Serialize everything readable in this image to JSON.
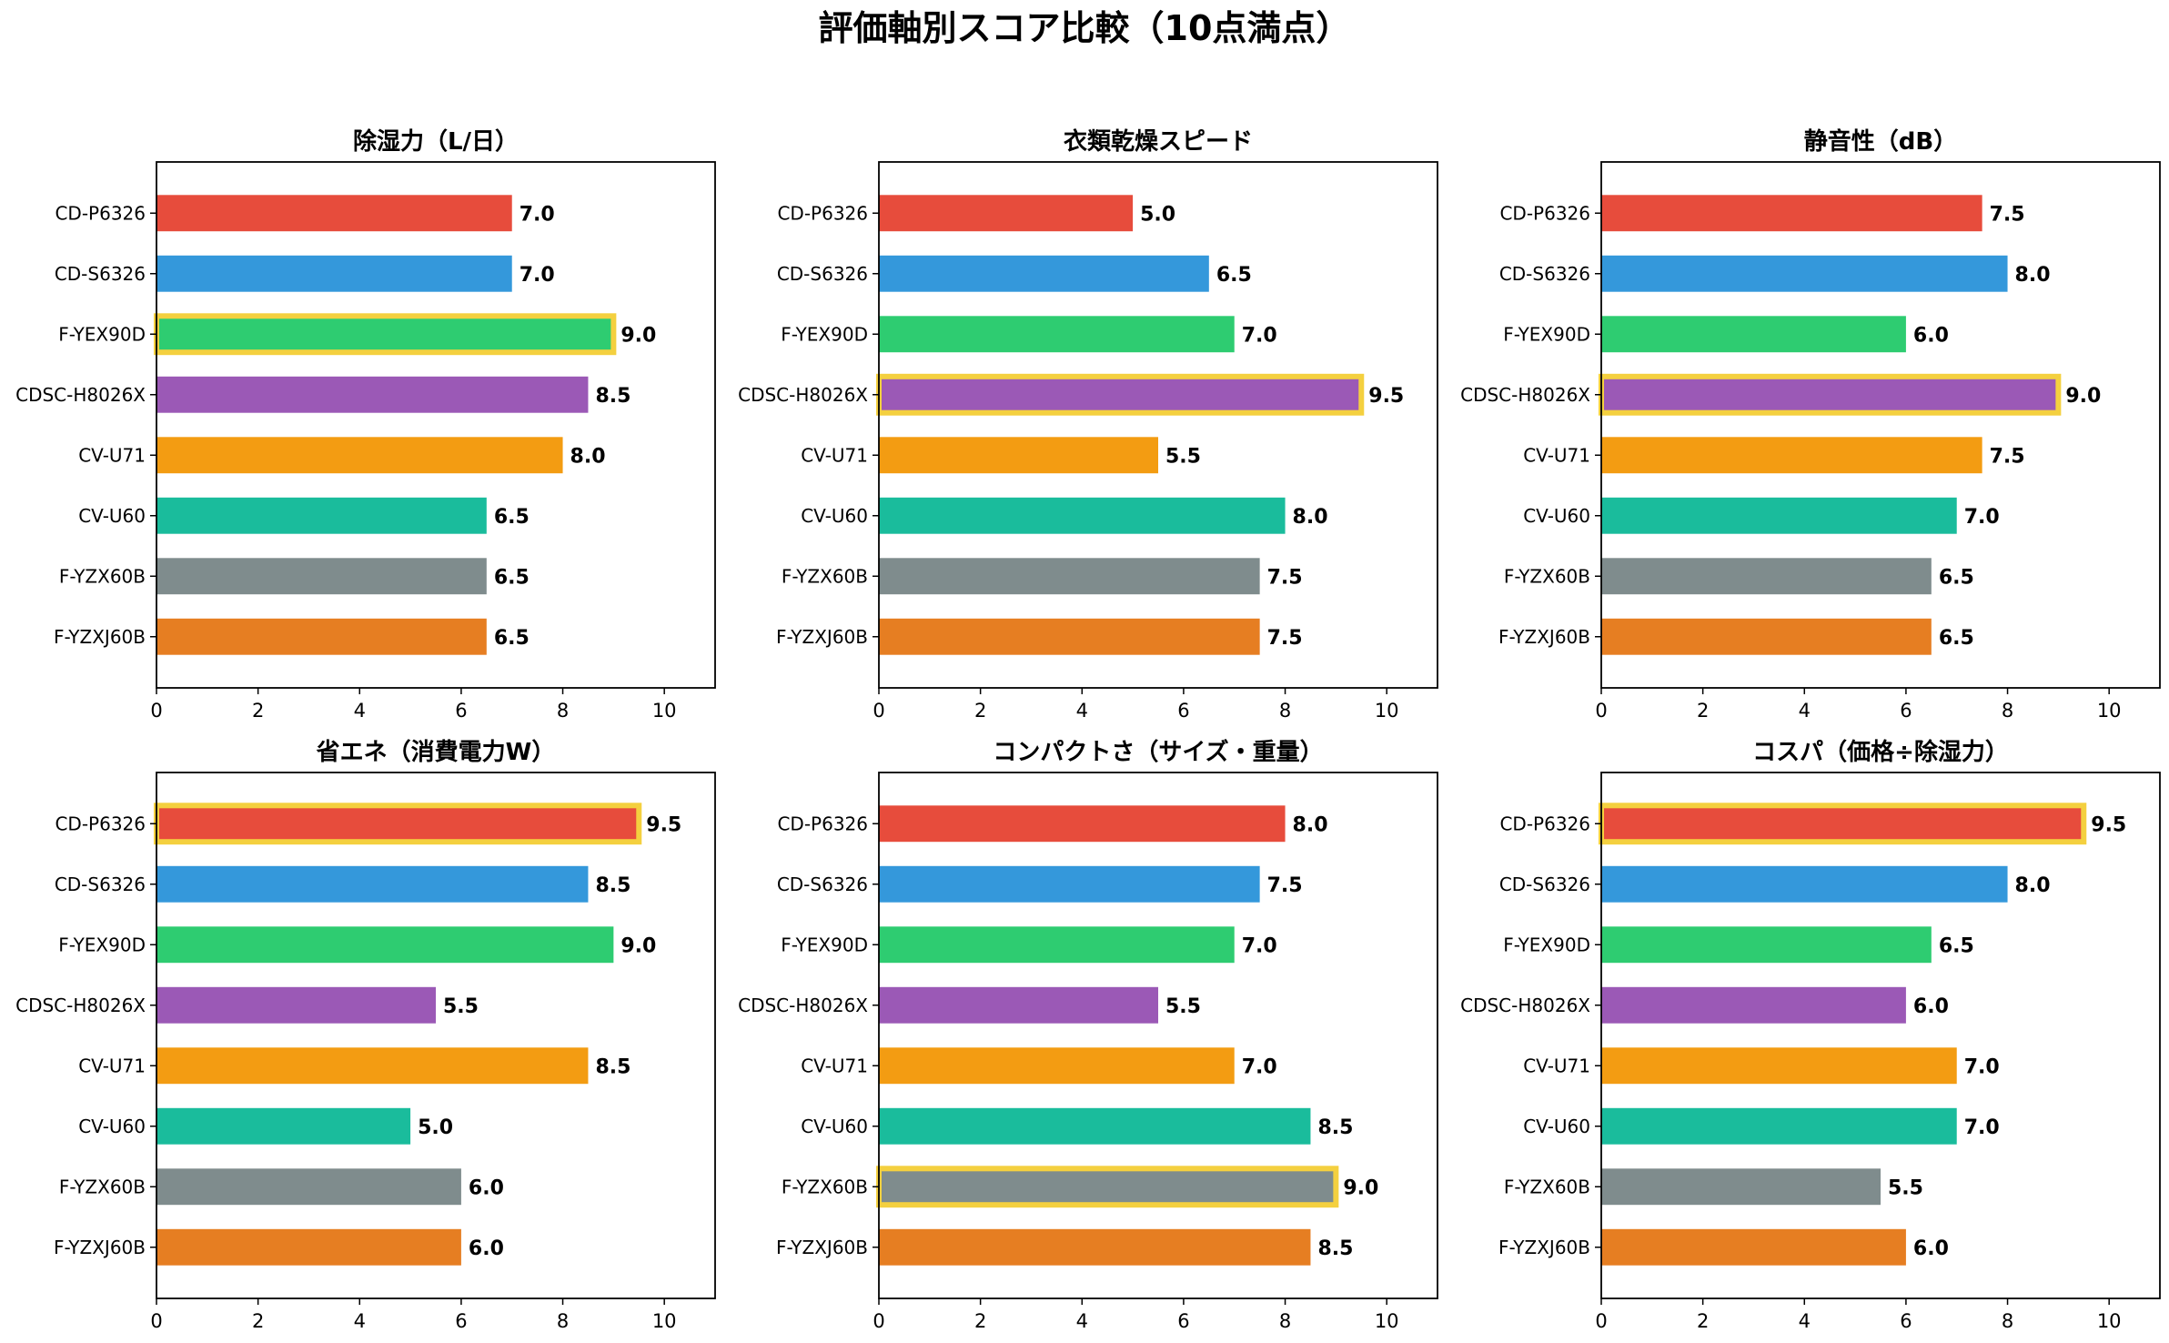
{
  "suptitle": "評価軸別スコア比較（10点満点）",
  "chart_data": [
    {
      "type": "bar",
      "orientation": "horizontal",
      "title": "除湿力（L/日）",
      "categories": [
        "CD-P6326",
        "CD-S6326",
        "F-YEX90D",
        "CDSC-H8026X",
        "CV-U71",
        "CV-U60",
        "F-YZX60B",
        "F-YZXJ60B"
      ],
      "values": [
        7.0,
        7.0,
        9.0,
        8.5,
        8.0,
        6.5,
        6.5,
        6.5
      ],
      "value_labels": [
        "7.0",
        "7.0",
        "9.0",
        "8.5",
        "8.0",
        "6.5",
        "6.5",
        "6.5"
      ],
      "highlight": "F-YEX90D",
      "xlim": [
        0,
        11
      ],
      "xticks": [
        0,
        2,
        4,
        6,
        8,
        10
      ],
      "xtick_labels": [
        "0",
        "2",
        "4",
        "6",
        "8",
        "10"
      ],
      "grid": false
    },
    {
      "type": "bar",
      "orientation": "horizontal",
      "title": "衣類乾燥スピード",
      "categories": [
        "CD-P6326",
        "CD-S6326",
        "F-YEX90D",
        "CDSC-H8026X",
        "CV-U71",
        "CV-U60",
        "F-YZX60B",
        "F-YZXJ60B"
      ],
      "values": [
        5.0,
        6.5,
        7.0,
        9.5,
        5.5,
        8.0,
        7.5,
        7.5
      ],
      "value_labels": [
        "5.0",
        "6.5",
        "7.0",
        "9.5",
        "5.5",
        "8.0",
        "7.5",
        "7.5"
      ],
      "highlight": "CDSC-H8026X",
      "xlim": [
        0,
        11
      ],
      "xticks": [
        0,
        2,
        4,
        6,
        8,
        10
      ],
      "xtick_labels": [
        "0",
        "2",
        "4",
        "6",
        "8",
        "10"
      ],
      "grid": false
    },
    {
      "type": "bar",
      "orientation": "horizontal",
      "title": "静音性（dB）",
      "categories": [
        "CD-P6326",
        "CD-S6326",
        "F-YEX90D",
        "CDSC-H8026X",
        "CV-U71",
        "CV-U60",
        "F-YZX60B",
        "F-YZXJ60B"
      ],
      "values": [
        7.5,
        8.0,
        6.0,
        9.0,
        7.5,
        7.0,
        6.5,
        6.5
      ],
      "value_labels": [
        "7.5",
        "8.0",
        "6.0",
        "9.0",
        "7.5",
        "7.0",
        "6.5",
        "6.5"
      ],
      "highlight": "CDSC-H8026X",
      "xlim": [
        0,
        11
      ],
      "xticks": [
        0,
        2,
        4,
        6,
        8,
        10
      ],
      "xtick_labels": [
        "0",
        "2",
        "4",
        "6",
        "8",
        "10"
      ],
      "grid": false
    },
    {
      "type": "bar",
      "orientation": "horizontal",
      "title": "省エネ（消費電力W）",
      "categories": [
        "CD-P6326",
        "CD-S6326",
        "F-YEX90D",
        "CDSC-H8026X",
        "CV-U71",
        "CV-U60",
        "F-YZX60B",
        "F-YZXJ60B"
      ],
      "values": [
        9.5,
        8.5,
        9.0,
        5.5,
        8.5,
        5.0,
        6.0,
        6.0
      ],
      "value_labels": [
        "9.5",
        "8.5",
        "9.0",
        "5.5",
        "8.5",
        "5.0",
        "6.0",
        "6.0"
      ],
      "highlight": "CD-P6326",
      "xlim": [
        0,
        11
      ],
      "xticks": [
        0,
        2,
        4,
        6,
        8,
        10
      ],
      "xtick_labels": [
        "0",
        "2",
        "4",
        "6",
        "8",
        "10"
      ],
      "grid": false
    },
    {
      "type": "bar",
      "orientation": "horizontal",
      "title": "コンパクトさ（サイズ・重量）",
      "categories": [
        "CD-P6326",
        "CD-S6326",
        "F-YEX90D",
        "CDSC-H8026X",
        "CV-U71",
        "CV-U60",
        "F-YZX60B",
        "F-YZXJ60B"
      ],
      "values": [
        8.0,
        7.5,
        7.0,
        5.5,
        7.0,
        8.5,
        9.0,
        8.5
      ],
      "value_labels": [
        "8.0",
        "7.5",
        "7.0",
        "5.5",
        "7.0",
        "8.5",
        "9.0",
        "8.5"
      ],
      "highlight": "F-YZX60B",
      "xlim": [
        0,
        11
      ],
      "xticks": [
        0,
        2,
        4,
        6,
        8,
        10
      ],
      "xtick_labels": [
        "0",
        "2",
        "4",
        "6",
        "8",
        "10"
      ],
      "grid": false
    },
    {
      "type": "bar",
      "orientation": "horizontal",
      "title": "コスパ（価格÷除湿力）",
      "categories": [
        "CD-P6326",
        "CD-S6326",
        "F-YEX90D",
        "CDSC-H8026X",
        "CV-U71",
        "CV-U60",
        "F-YZX60B",
        "F-YZXJ60B"
      ],
      "values": [
        9.5,
        8.0,
        6.5,
        6.0,
        7.0,
        7.0,
        5.5,
        6.0
      ],
      "value_labels": [
        "9.5",
        "8.0",
        "6.5",
        "6.0",
        "7.0",
        "7.0",
        "5.5",
        "6.0"
      ],
      "highlight": "CD-P6326",
      "xlim": [
        0,
        11
      ],
      "xticks": [
        0,
        2,
        4,
        6,
        8,
        10
      ],
      "xtick_labels": [
        "0",
        "2",
        "4",
        "6",
        "8",
        "10"
      ],
      "grid": false
    }
  ],
  "colors": {
    "bars": [
      "#e74c3c",
      "#3498db",
      "#2ecc71",
      "#9b59b6",
      "#f39c12",
      "#1abc9c",
      "#7f8c8d",
      "#e67e22"
    ],
    "highlight_outline": "#f4d03f",
    "axis": "#000000"
  }
}
